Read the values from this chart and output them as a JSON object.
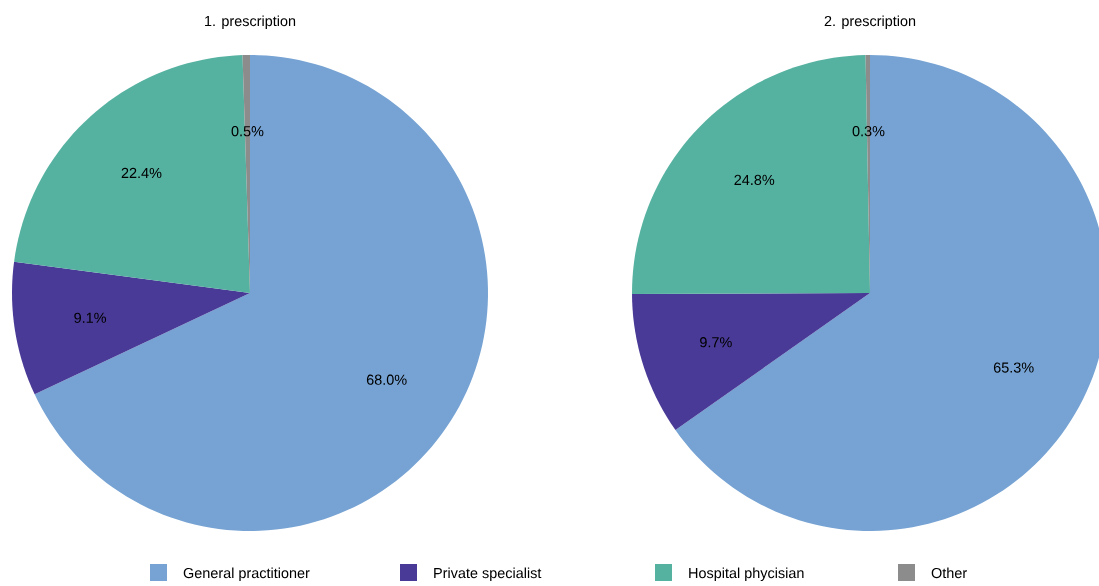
{
  "chart_data": [
    {
      "type": "pie",
      "title": "1. prescription",
      "categories": [
        "General practitioner",
        "Private specialist",
        "Hospital phycisian",
        "Other"
      ],
      "values": [
        68.0,
        9.1,
        22.4,
        0.5
      ],
      "value_labels": [
        "68.0%",
        "9.1%",
        "22.4%",
        "0.5%"
      ],
      "colors": [
        "#76a3d3",
        "#483a96",
        "#55b1a0",
        "#8c8c8c"
      ],
      "legend": "bottom"
    },
    {
      "type": "pie",
      "title": "2. prescription",
      "categories": [
        null,
        null,
        null,
        null
      ],
      "values": [
        65.3,
        9.7,
        24.8,
        0.3
      ],
      "value_labels": [
        "65.3%",
        "9.7%",
        "24.8%",
        "0.3%"
      ],
      "colors": [
        "#76a3d3",
        "#483a96",
        "#55b1a0",
        "#8c8c8c"
      ]
    }
  ]
}
